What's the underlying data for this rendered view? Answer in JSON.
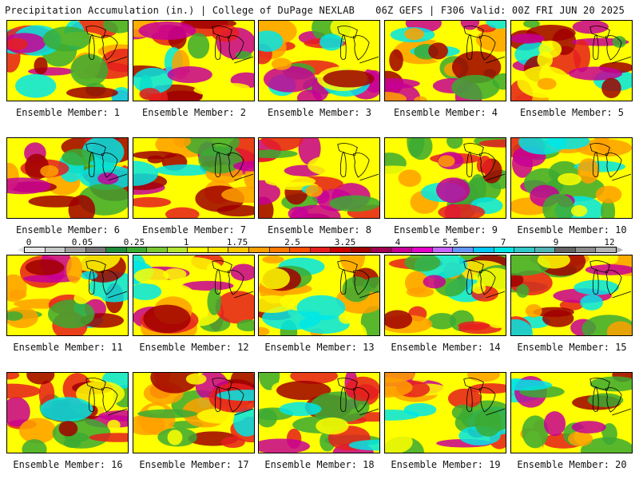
{
  "header": {
    "title": "Precipitation Accumulation (in.) | College of DuPage NEXLAB",
    "valid": "06Z GEFS | F306 Valid: 00Z FRI JUN 20 2025"
  },
  "members": [
    {
      "label": "Ensemble Member: 1"
    },
    {
      "label": "Ensemble Member: 2"
    },
    {
      "label": "Ensemble Member: 3"
    },
    {
      "label": "Ensemble Member: 4"
    },
    {
      "label": "Ensemble Member: 5"
    },
    {
      "label": "Ensemble Member: 6"
    },
    {
      "label": "Ensemble Member: 7"
    },
    {
      "label": "Ensemble Member: 8"
    },
    {
      "label": "Ensemble Member: 9"
    },
    {
      "label": "Ensemble Member: 10"
    },
    {
      "label": "Ensemble Member: 11"
    },
    {
      "label": "Ensemble Member: 12"
    },
    {
      "label": "Ensemble Member: 13"
    },
    {
      "label": "Ensemble Member: 14"
    },
    {
      "label": "Ensemble Member: 15"
    },
    {
      "label": "Ensemble Member: 16"
    },
    {
      "label": "Ensemble Member: 17"
    },
    {
      "label": "Ensemble Member: 18"
    },
    {
      "label": "Ensemble Member: 19"
    },
    {
      "label": "Ensemble Member: 20"
    }
  ],
  "colorbar": {
    "tick_labels": [
      "0",
      "0.05",
      "0.25",
      "1",
      "1.75",
      "2.5",
      "3.25",
      "4",
      "5.5",
      "7",
      "9",
      "12"
    ],
    "colors": [
      "#e6e6e6",
      "#c8c8c8",
      "#a0a0a0",
      "#787878",
      "#1e8c3c",
      "#3caa32",
      "#78c832",
      "#b4e632",
      "#ffff00",
      "#ffe600",
      "#ffc800",
      "#ffa000",
      "#ff7800",
      "#ff5000",
      "#e61e1e",
      "#c80000",
      "#a00000",
      "#a00050",
      "#c80096",
      "#e600c8",
      "#c864ff",
      "#6496ff",
      "#00c8ff",
      "#00e6e6",
      "#32c8c8",
      "#50b4b4",
      "#646464",
      "#8c8c8c",
      "#b4b4b4"
    ]
  },
  "colors": {
    "green": "#3caa32",
    "yellow": "#ffff00",
    "orange": "#ffa000",
    "red": "#e61e1e",
    "darkred": "#a00000",
    "magenta": "#c80096",
    "cyan": "#00e6e6"
  }
}
